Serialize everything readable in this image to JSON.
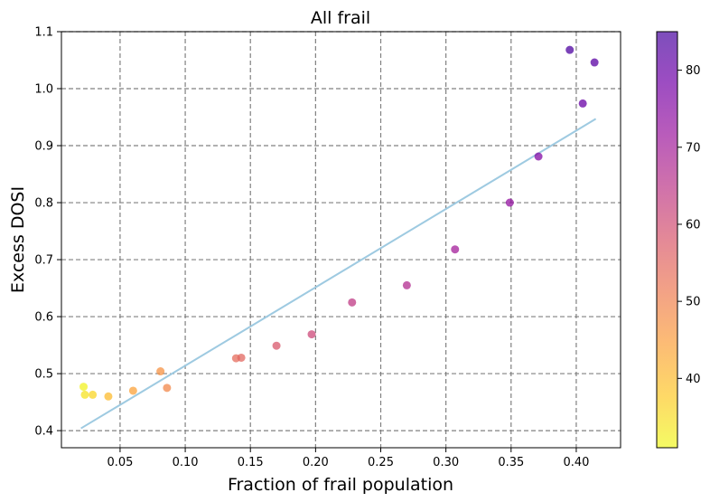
{
  "chart_data": {
    "type": "scatter",
    "title": "All frail",
    "xlabel": "Fraction of frail population",
    "ylabel": "Excess DOSI",
    "xlim": [
      0.005,
      0.434
    ],
    "ylim": [
      0.37,
      1.1
    ],
    "xticks": [
      0.05,
      0.1,
      0.15,
      0.2,
      0.25,
      0.3,
      0.35,
      0.4
    ],
    "xtick_labels": [
      "0.05",
      "0.10",
      "0.15",
      "0.20",
      "0.25",
      "0.30",
      "0.35",
      "0.40"
    ],
    "yticks": [
      0.4,
      0.5,
      0.6,
      0.7,
      0.8,
      0.9,
      1.0,
      1.1
    ],
    "ytick_labels": [
      "0.4",
      "0.5",
      "0.6",
      "0.7",
      "0.8",
      "0.9",
      "1.0",
      "1.1"
    ],
    "grid": true,
    "grid_style": "dashed",
    "colormap": "plasma_r",
    "colorbar": {
      "range": [
        31,
        85
      ],
      "ticks": [
        40,
        50,
        60,
        70,
        80
      ],
      "tick_labels": [
        "40",
        "50",
        "60",
        "70",
        "80"
      ]
    },
    "points": [
      {
        "x": 0.022,
        "y": 0.477,
        "c": 32
      },
      {
        "x": 0.023,
        "y": 0.463,
        "c": 34
      },
      {
        "x": 0.029,
        "y": 0.463,
        "c": 36
      },
      {
        "x": 0.041,
        "y": 0.46,
        "c": 40
      },
      {
        "x": 0.06,
        "y": 0.47,
        "c": 44
      },
      {
        "x": 0.081,
        "y": 0.504,
        "c": 47
      },
      {
        "x": 0.086,
        "y": 0.475,
        "c": 49
      },
      {
        "x": 0.139,
        "y": 0.527,
        "c": 54
      },
      {
        "x": 0.143,
        "y": 0.528,
        "c": 55
      },
      {
        "x": 0.17,
        "y": 0.549,
        "c": 58
      },
      {
        "x": 0.197,
        "y": 0.569,
        "c": 61
      },
      {
        "x": 0.228,
        "y": 0.625,
        "c": 64
      },
      {
        "x": 0.27,
        "y": 0.655,
        "c": 67
      },
      {
        "x": 0.307,
        "y": 0.718,
        "c": 70
      },
      {
        "x": 0.349,
        "y": 0.8,
        "c": 73
      },
      {
        "x": 0.371,
        "y": 0.881,
        "c": 76
      },
      {
        "x": 0.395,
        "y": 1.068,
        "c": 84
      },
      {
        "x": 0.405,
        "y": 0.974,
        "c": 80
      },
      {
        "x": 0.414,
        "y": 1.046,
        "c": 82
      }
    ],
    "fit_line": {
      "x": [
        0.02,
        0.415
      ],
      "y": [
        0.404,
        0.947
      ],
      "color": "#9ecae1"
    }
  }
}
